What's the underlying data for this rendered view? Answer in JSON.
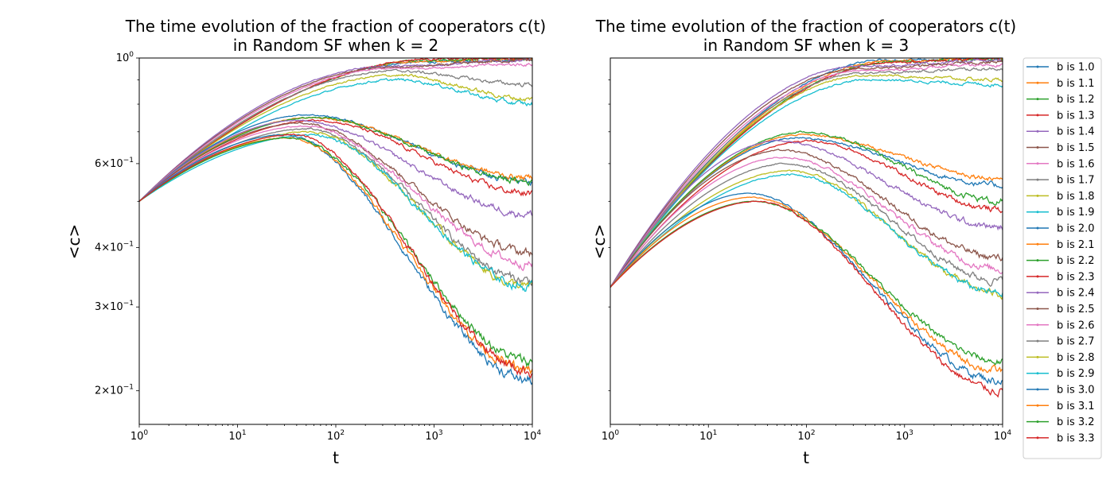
{
  "chart_data": [
    {
      "type": "line",
      "title_line1": "The time evolution of the fraction of cooperators c(t)",
      "title_line2": "in Random SF when k = 2",
      "xlabel": "t",
      "ylabel": "<c>",
      "xscale": "log",
      "yscale": "log",
      "xlim": [
        1,
        10000
      ],
      "ylim": [
        0.17,
        1.0
      ],
      "x_ticks": [
        {
          "value": 1,
          "base": "10",
          "exp": "0"
        },
        {
          "value": 10,
          "base": "10",
          "exp": "1"
        },
        {
          "value": 100,
          "base": "10",
          "exp": "2"
        },
        {
          "value": 1000,
          "base": "10",
          "exp": "3"
        },
        {
          "value": 10000,
          "base": "10",
          "exp": "4"
        }
      ],
      "y_ticks": [
        {
          "value": 1.0,
          "mant": "",
          "exp": "0",
          "base": "10"
        },
        {
          "value": 0.6,
          "mant": "6×",
          "exp": "−1",
          "base": "10"
        },
        {
          "value": 0.4,
          "mant": "4×",
          "exp": "−1",
          "base": "10"
        },
        {
          "value": 0.3,
          "mant": "3×",
          "exp": "−1",
          "base": "10"
        },
        {
          "value": 0.2,
          "mant": "2×",
          "exp": "−1",
          "base": "10"
        }
      ],
      "y_minor": [
        0.5,
        0.7,
        0.8,
        0.9
      ],
      "start": 0.5,
      "groups": [
        {
          "b": [
            "1.0",
            "1.1",
            "1.2",
            "1.3"
          ],
          "peak": [
            0.98,
            0.985,
            0.99,
            0.995
          ],
          "tpk": 700,
          "end": [
            0.995,
            0.997,
            0.998,
            0.999
          ]
        },
        {
          "b": [
            "1.4",
            "1.5",
            "1.6",
            "1.7",
            "1.8",
            "1.9"
          ],
          "peak": [
            0.96,
            0.955,
            0.95,
            0.94,
            0.92,
            0.9
          ],
          "tpk": 300,
          "end": [
            0.99,
            0.99,
            0.97,
            0.88,
            0.82,
            0.8
          ]
        },
        {
          "b": [
            "2.0",
            "2.1",
            "2.2",
            "2.3"
          ],
          "peak": [
            0.76,
            0.75,
            0.75,
            0.74
          ],
          "tpk": 50,
          "end": [
            0.55,
            0.56,
            0.55,
            0.52
          ]
        },
        {
          "b": [
            "2.4",
            "2.5",
            "2.6",
            "2.7",
            "2.8",
            "2.9"
          ],
          "peak": [
            0.74,
            0.73,
            0.72,
            0.71,
            0.7,
            0.69
          ],
          "tpk": 40,
          "end": [
            0.47,
            0.39,
            0.37,
            0.34,
            0.33,
            0.33
          ]
        },
        {
          "b": [
            "3.0",
            "3.1",
            "3.2",
            "3.3"
          ],
          "peak": [
            0.69,
            0.68,
            0.68,
            0.69
          ],
          "tpk": 30,
          "end": [
            0.21,
            0.22,
            0.23,
            0.22
          ]
        }
      ]
    },
    {
      "type": "line",
      "title_line1": "The time evolution of the fraction of cooperators c(t)",
      "title_line2": "in Random SF when k = 3",
      "xlabel": "t",
      "ylabel": "<c>",
      "xscale": "log",
      "yscale": "log",
      "xlim": [
        1,
        10000
      ],
      "ylim": [
        0.17,
        1.0
      ],
      "x_ticks": [
        {
          "value": 1,
          "base": "10",
          "exp": "0"
        },
        {
          "value": 10,
          "base": "10",
          "exp": "1"
        },
        {
          "value": 100,
          "base": "10",
          "exp": "2"
        },
        {
          "value": 1000,
          "base": "10",
          "exp": "3"
        },
        {
          "value": 10000,
          "base": "10",
          "exp": "4"
        }
      ],
      "y_ticks": [],
      "y_minor": [
        0.2,
        0.3,
        0.4,
        0.5,
        0.6,
        0.7,
        0.8,
        0.9
      ],
      "start": 0.33,
      "groups": [
        {
          "b": [
            "1.0",
            "1.1",
            "1.2",
            "1.3"
          ],
          "peak": [
            0.99,
            0.985,
            0.98,
            0.98
          ],
          "tpk": 600,
          "end": [
            0.999,
            0.998,
            0.997,
            0.996
          ]
        },
        {
          "b": [
            "1.4",
            "1.5",
            "1.6",
            "1.7",
            "1.8",
            "1.9"
          ],
          "peak": [
            0.96,
            0.95,
            0.94,
            0.93,
            0.92,
            0.9
          ],
          "tpk": 300,
          "end": [
            0.99,
            0.98,
            0.97,
            0.95,
            0.9,
            0.88
          ]
        },
        {
          "b": [
            "2.0",
            "2.1",
            "2.2",
            "2.3"
          ],
          "peak": [
            0.68,
            0.69,
            0.7,
            0.67
          ],
          "tpk": 80,
          "end": [
            0.54,
            0.56,
            0.5,
            0.48
          ]
        },
        {
          "b": [
            "2.4",
            "2.5",
            "2.6",
            "2.7",
            "2.8",
            "2.9"
          ],
          "peak": [
            0.67,
            0.64,
            0.62,
            0.6,
            0.58,
            0.57
          ],
          "tpk": 50,
          "end": [
            0.44,
            0.38,
            0.36,
            0.34,
            0.32,
            0.32
          ]
        },
        {
          "b": [
            "3.0",
            "3.1",
            "3.2",
            "3.3"
          ],
          "peak": [
            0.52,
            0.51,
            0.5,
            0.5
          ],
          "tpk": 25,
          "end": [
            0.21,
            0.22,
            0.23,
            0.2
          ]
        }
      ]
    }
  ],
  "legend": {
    "placement": "right",
    "entries": [
      "b is 1.0",
      "b is 1.1",
      "b is 1.2",
      "b is 1.3",
      "b is 1.4",
      "b is 1.5",
      "b is 1.6",
      "b is 1.7",
      "b is 1.8",
      "b is 1.9",
      "b is 2.0",
      "b is 2.1",
      "b is 2.2",
      "b is 2.3",
      "b is 2.4",
      "b is 2.5",
      "b is 2.6",
      "b is 2.7",
      "b is 2.8",
      "b is 2.9",
      "b is 3.0",
      "b is 3.1",
      "b is 3.2",
      "b is 3.3"
    ]
  },
  "colors": [
    "#1f77b4",
    "#ff7f0e",
    "#2ca02c",
    "#d62728",
    "#9467bd",
    "#8c564b",
    "#e377c2",
    "#7f7f7f",
    "#bcbd22",
    "#17becf"
  ]
}
